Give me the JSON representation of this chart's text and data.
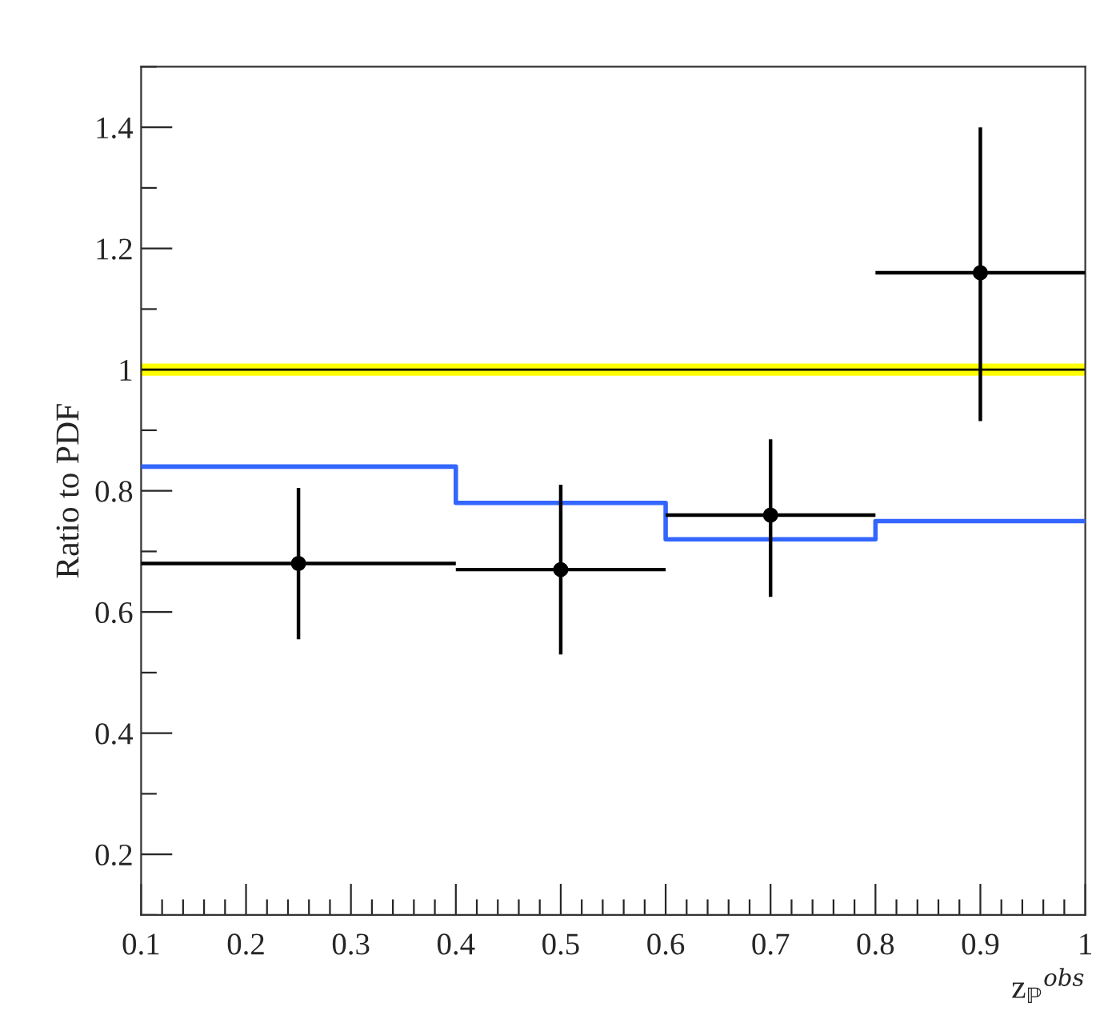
{
  "chart_data": {
    "type": "scatter",
    "ylabel": "Ratio to PDF",
    "xlabel": "z$_{ℙ}$$^{obs}$",
    "xlim": [
      0.1,
      1.0
    ],
    "xticks": [
      0.1,
      0.2,
      0.3,
      0.4,
      0.5,
      0.6,
      0.7,
      0.8,
      0.9,
      {
        "value": 1.0,
        "label": "1"
      }
    ],
    "ylim": [
      0.1,
      1.5
    ],
    "yticks": [
      0.2,
      0.4,
      0.6,
      0.8,
      {
        "value": 1.0,
        "label": "1"
      },
      1.2,
      1.4
    ],
    "grid": false,
    "legend": false,
    "bands": [
      {
        "axis": "y",
        "from": 0.99,
        "to": 1.01,
        "color": "#ffff00"
      }
    ],
    "ref_lines": [
      {
        "axis": "y",
        "value": 1.0,
        "color": "#000000",
        "line_style": "solid"
      }
    ],
    "series": [
      {
        "type": "step",
        "color": "#3366ff",
        "x": [
          0.1,
          0.4,
          0.6,
          0.8,
          1.0
        ],
        "values": [
          0.84,
          0.78,
          0.72,
          0.75,
          0.75
        ]
      },
      {
        "type": "scatter",
        "color": "#000000",
        "marker": "circle",
        "x": [
          0.25,
          0.5,
          0.7,
          0.9
        ],
        "values": [
          0.68,
          0.67,
          0.76,
          1.16
        ],
        "errors": [
          [
            0.555,
            0.805
          ],
          [
            0.53,
            0.81
          ],
          [
            0.625,
            0.885
          ],
          [
            0.915,
            1.4
          ]
        ],
        "xerrors": [
          [
            0.1,
            0.4
          ],
          [
            0.4,
            0.6
          ],
          [
            0.6,
            0.8
          ],
          [
            0.8,
            1.0
          ]
        ]
      }
    ]
  }
}
